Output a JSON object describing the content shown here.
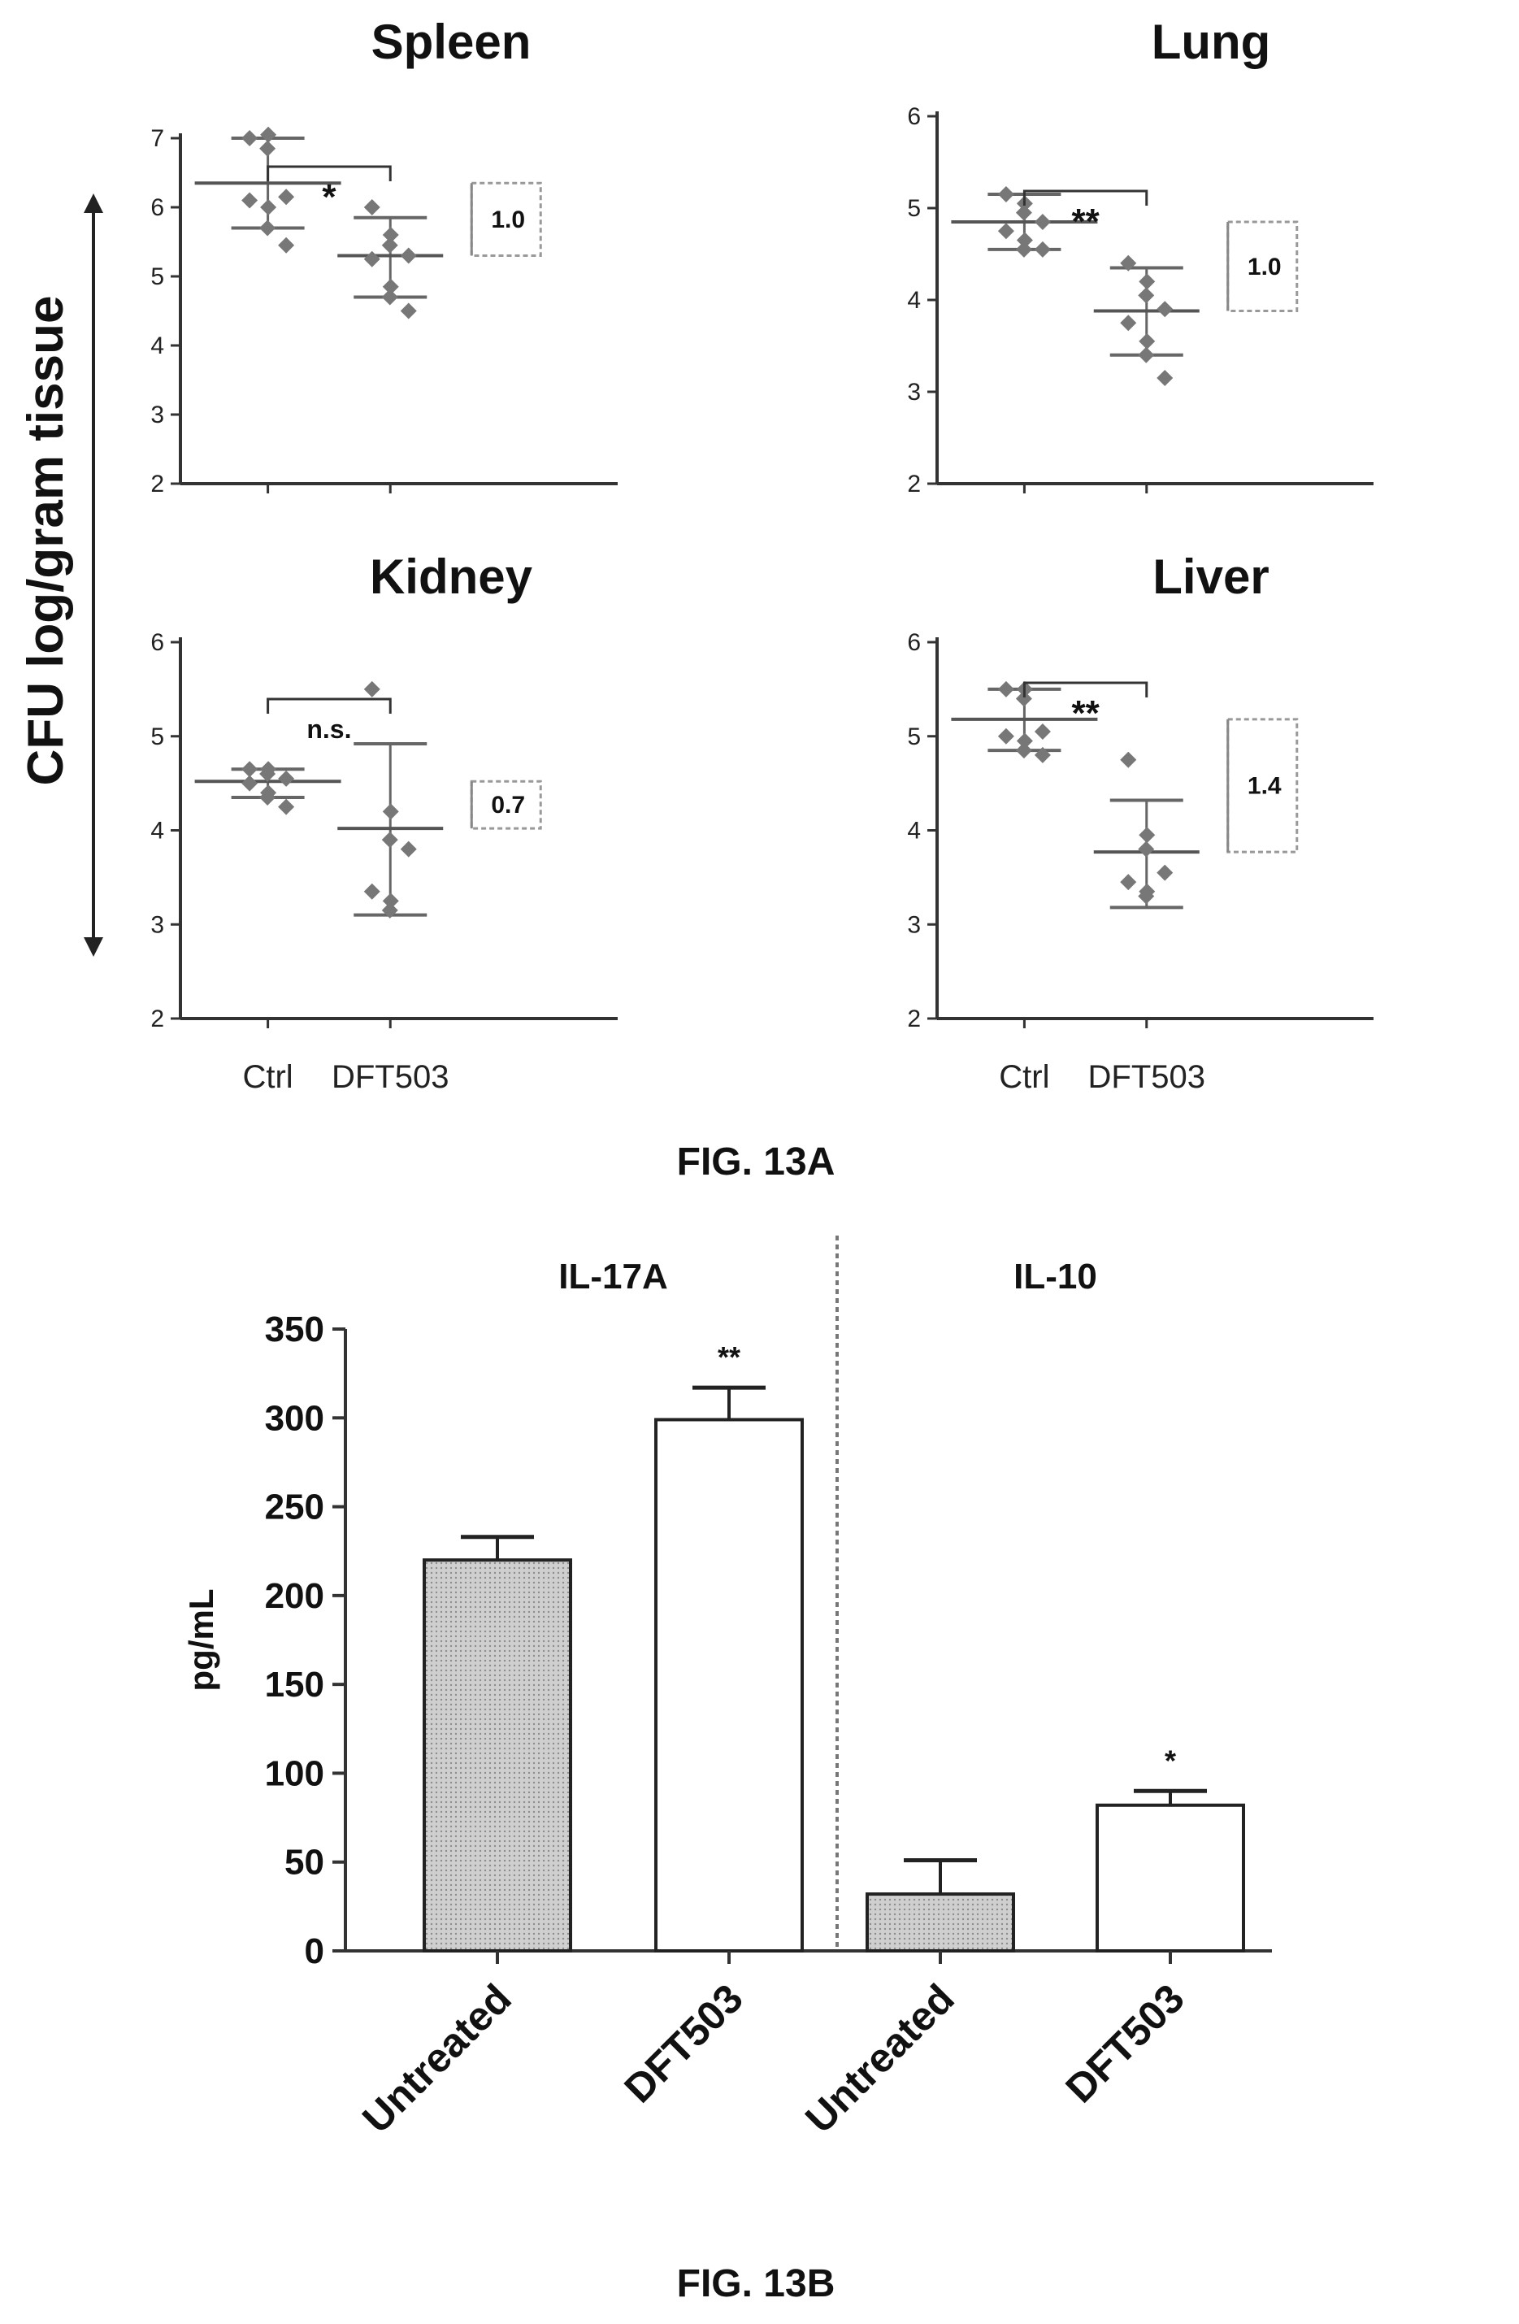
{
  "figure_a": {
    "caption": "FIG. 13A",
    "y_axis_label": "CFU log/gram tissue",
    "categories": [
      "Ctrl",
      "DFT503"
    ]
  },
  "figure_b": {
    "caption": "FIG. 13B",
    "y_axis_label": "pg/mL"
  },
  "chart_data": [
    {
      "type": "scatter",
      "title": "Spleen",
      "ylim": [
        2,
        7
      ],
      "yticks": [
        2,
        3,
        4,
        5,
        6,
        7
      ],
      "categories": [
        "Ctrl",
        "DFT503"
      ],
      "points": {
        "Ctrl": [
          7.0,
          7.05,
          6.85,
          6.15,
          6.1,
          6.0,
          5.7,
          5.45
        ],
        "DFT503": [
          6.0,
          5.6,
          5.45,
          5.3,
          5.25,
          4.85,
          4.7,
          4.5
        ]
      },
      "mean": {
        "Ctrl": 6.35,
        "DFT503": 5.3
      },
      "error": {
        "Ctrl": [
          5.7,
          7.0
        ],
        "DFT503": [
          4.7,
          5.85
        ]
      },
      "significance": "*",
      "difference_label": "1.0"
    },
    {
      "type": "scatter",
      "title": "Lung",
      "ylim": [
        2,
        6
      ],
      "yticks": [
        2,
        3,
        4,
        5,
        6
      ],
      "categories": [
        "Ctrl",
        "DFT503"
      ],
      "points": {
        "Ctrl": [
          5.15,
          5.05,
          4.95,
          4.85,
          4.75,
          4.65,
          4.55,
          4.55
        ],
        "DFT503": [
          4.4,
          4.2,
          4.05,
          3.9,
          3.75,
          3.55,
          3.4,
          3.15
        ]
      },
      "mean": {
        "Ctrl": 4.85,
        "DFT503": 3.88
      },
      "error": {
        "Ctrl": [
          4.55,
          5.15
        ],
        "DFT503": [
          3.4,
          4.35
        ]
      },
      "significance": "**",
      "difference_label": "1.0"
    },
    {
      "type": "scatter",
      "title": "Kidney",
      "ylim": [
        2,
        6
      ],
      "yticks": [
        2,
        3,
        4,
        5,
        6
      ],
      "categories": [
        "Ctrl",
        "DFT503"
      ],
      "points": {
        "Ctrl": [
          4.65,
          4.65,
          4.6,
          4.55,
          4.5,
          4.4,
          4.35,
          4.25
        ],
        "DFT503": [
          5.5,
          4.2,
          3.9,
          3.8,
          3.35,
          3.25,
          3.15
        ]
      },
      "mean": {
        "Ctrl": 4.52,
        "DFT503": 4.02
      },
      "error": {
        "Ctrl": [
          4.35,
          4.65
        ],
        "DFT503": [
          3.1,
          4.92
        ]
      },
      "significance": "n.s.",
      "difference_label": "0.7"
    },
    {
      "type": "scatter",
      "title": "Liver",
      "ylim": [
        2,
        6
      ],
      "yticks": [
        2,
        3,
        4,
        5,
        6
      ],
      "categories": [
        "Ctrl",
        "DFT503"
      ],
      "points": {
        "Ctrl": [
          5.5,
          5.5,
          5.4,
          5.05,
          5.0,
          4.95,
          4.85,
          4.8
        ],
        "DFT503": [
          4.75,
          3.95,
          3.8,
          3.55,
          3.45,
          3.35,
          3.3
        ]
      },
      "mean": {
        "Ctrl": 5.18,
        "DFT503": 3.77
      },
      "error": {
        "Ctrl": [
          4.85,
          5.5
        ],
        "DFT503": [
          3.18,
          4.32
        ]
      },
      "significance": "**",
      "difference_label": "1.4"
    },
    {
      "type": "bar",
      "ylabel": "pg/mL",
      "ylim": [
        0,
        350
      ],
      "yticks": [
        0,
        50,
        100,
        150,
        200,
        250,
        300,
        350
      ],
      "groups": [
        "IL-17A",
        "IL-10"
      ],
      "categories": [
        "Untreated",
        "DFT503",
        "Untreated",
        "DFT503"
      ],
      "values": [
        220,
        299,
        32,
        82
      ],
      "error_upper": [
        233,
        317,
        51,
        90
      ],
      "significance": [
        "",
        "**",
        "",
        "*"
      ],
      "fill": [
        "#c8c8c8",
        "#ffffff",
        "#c8c8c8",
        "#ffffff"
      ]
    }
  ]
}
